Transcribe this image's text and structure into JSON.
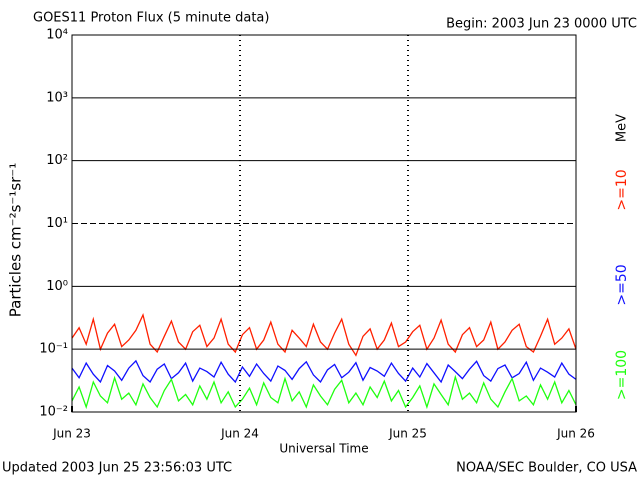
{
  "chart_data": {
    "type": "line",
    "title": "GOES11 Proton Flux (5 minute data)",
    "subtitle": "Begin: 2003 Jun 23 0000 UTC",
    "ylabel": "Particles cm⁻²s⁻¹sr⁻¹",
    "xlabel": "Universal Time",
    "footer_left": "Updated 2003 Jun 25 23:56:03 UTC",
    "footer_right": "NOAA/SEC Boulder, CO USA",
    "legend_unit": "MeV",
    "log_y": true,
    "ylim": [
      0.01,
      10000
    ],
    "yticks": [
      {
        "value": 0.01,
        "label": "10⁻²"
      },
      {
        "value": 0.1,
        "label": "10⁻¹"
      },
      {
        "value": 1,
        "label": "10⁰"
      },
      {
        "value": 10,
        "label": "10¹"
      },
      {
        "value": 100,
        "label": "10²"
      },
      {
        "value": 1000,
        "label": "10³"
      },
      {
        "value": 10000,
        "label": "10⁴"
      }
    ],
    "xlim": [
      0,
      3
    ],
    "xticks": [
      {
        "value": 0,
        "label": "Jun 23"
      },
      {
        "value": 1,
        "label": "Jun 24"
      },
      {
        "value": 2,
        "label": "Jun 25"
      },
      {
        "value": 3,
        "label": "Jun 26"
      }
    ],
    "series": [
      {
        "name": ">=10",
        "color": "#ff2000",
        "values": [
          0.15,
          0.22,
          0.12,
          0.3,
          0.1,
          0.18,
          0.25,
          0.11,
          0.14,
          0.2,
          0.35,
          0.12,
          0.09,
          0.16,
          0.28,
          0.13,
          0.1,
          0.19,
          0.24,
          0.11,
          0.15,
          0.3,
          0.12,
          0.09,
          0.17,
          0.22,
          0.1,
          0.14,
          0.27,
          0.12,
          0.09,
          0.2,
          0.15,
          0.11,
          0.25,
          0.13,
          0.1,
          0.18,
          0.3,
          0.12,
          0.08,
          0.16,
          0.21,
          0.1,
          0.14,
          0.26,
          0.11,
          0.13,
          0.19,
          0.24,
          0.1,
          0.15,
          0.29,
          0.12,
          0.09,
          0.17,
          0.22,
          0.11,
          0.14,
          0.27,
          0.1,
          0.13,
          0.2,
          0.25,
          0.11,
          0.09,
          0.16,
          0.3,
          0.12,
          0.15,
          0.21,
          0.1
        ]
      },
      {
        "name": ">=50",
        "color": "#1010ff",
        "values": [
          0.05,
          0.035,
          0.06,
          0.04,
          0.03,
          0.055,
          0.045,
          0.032,
          0.05,
          0.065,
          0.038,
          0.03,
          0.048,
          0.058,
          0.034,
          0.042,
          0.06,
          0.031,
          0.05,
          0.044,
          0.036,
          0.062,
          0.04,
          0.03,
          0.052,
          0.037,
          0.058,
          0.041,
          0.031,
          0.054,
          0.046,
          0.033,
          0.049,
          0.063,
          0.039,
          0.03,
          0.047,
          0.057,
          0.035,
          0.043,
          0.061,
          0.032,
          0.051,
          0.045,
          0.037,
          0.06,
          0.041,
          0.031,
          0.05,
          0.036,
          0.059,
          0.042,
          0.03,
          0.056,
          0.044,
          0.034,
          0.048,
          0.064,
          0.038,
          0.031,
          0.049,
          0.056,
          0.035,
          0.041,
          0.062,
          0.032,
          0.05,
          0.043,
          0.036,
          0.06,
          0.04,
          0.033
        ]
      },
      {
        "name": ">=100",
        "color": "#20ff10",
        "values": [
          0.015,
          0.025,
          0.012,
          0.03,
          0.018,
          0.014,
          0.035,
          0.016,
          0.02,
          0.013,
          0.028,
          0.017,
          0.012,
          0.022,
          0.033,
          0.015,
          0.019,
          0.013,
          0.026,
          0.016,
          0.03,
          0.014,
          0.021,
          0.012,
          0.016,
          0.024,
          0.013,
          0.029,
          0.017,
          0.014,
          0.034,
          0.015,
          0.021,
          0.012,
          0.027,
          0.018,
          0.013,
          0.023,
          0.032,
          0.014,
          0.02,
          0.013,
          0.025,
          0.017,
          0.031,
          0.015,
          0.022,
          0.012,
          0.017,
          0.026,
          0.012,
          0.028,
          0.019,
          0.013,
          0.036,
          0.016,
          0.02,
          0.014,
          0.029,
          0.016,
          0.012,
          0.021,
          0.034,
          0.015,
          0.018,
          0.013,
          0.027,
          0.016,
          0.03,
          0.014,
          0.022,
          0.013
        ]
      }
    ]
  }
}
